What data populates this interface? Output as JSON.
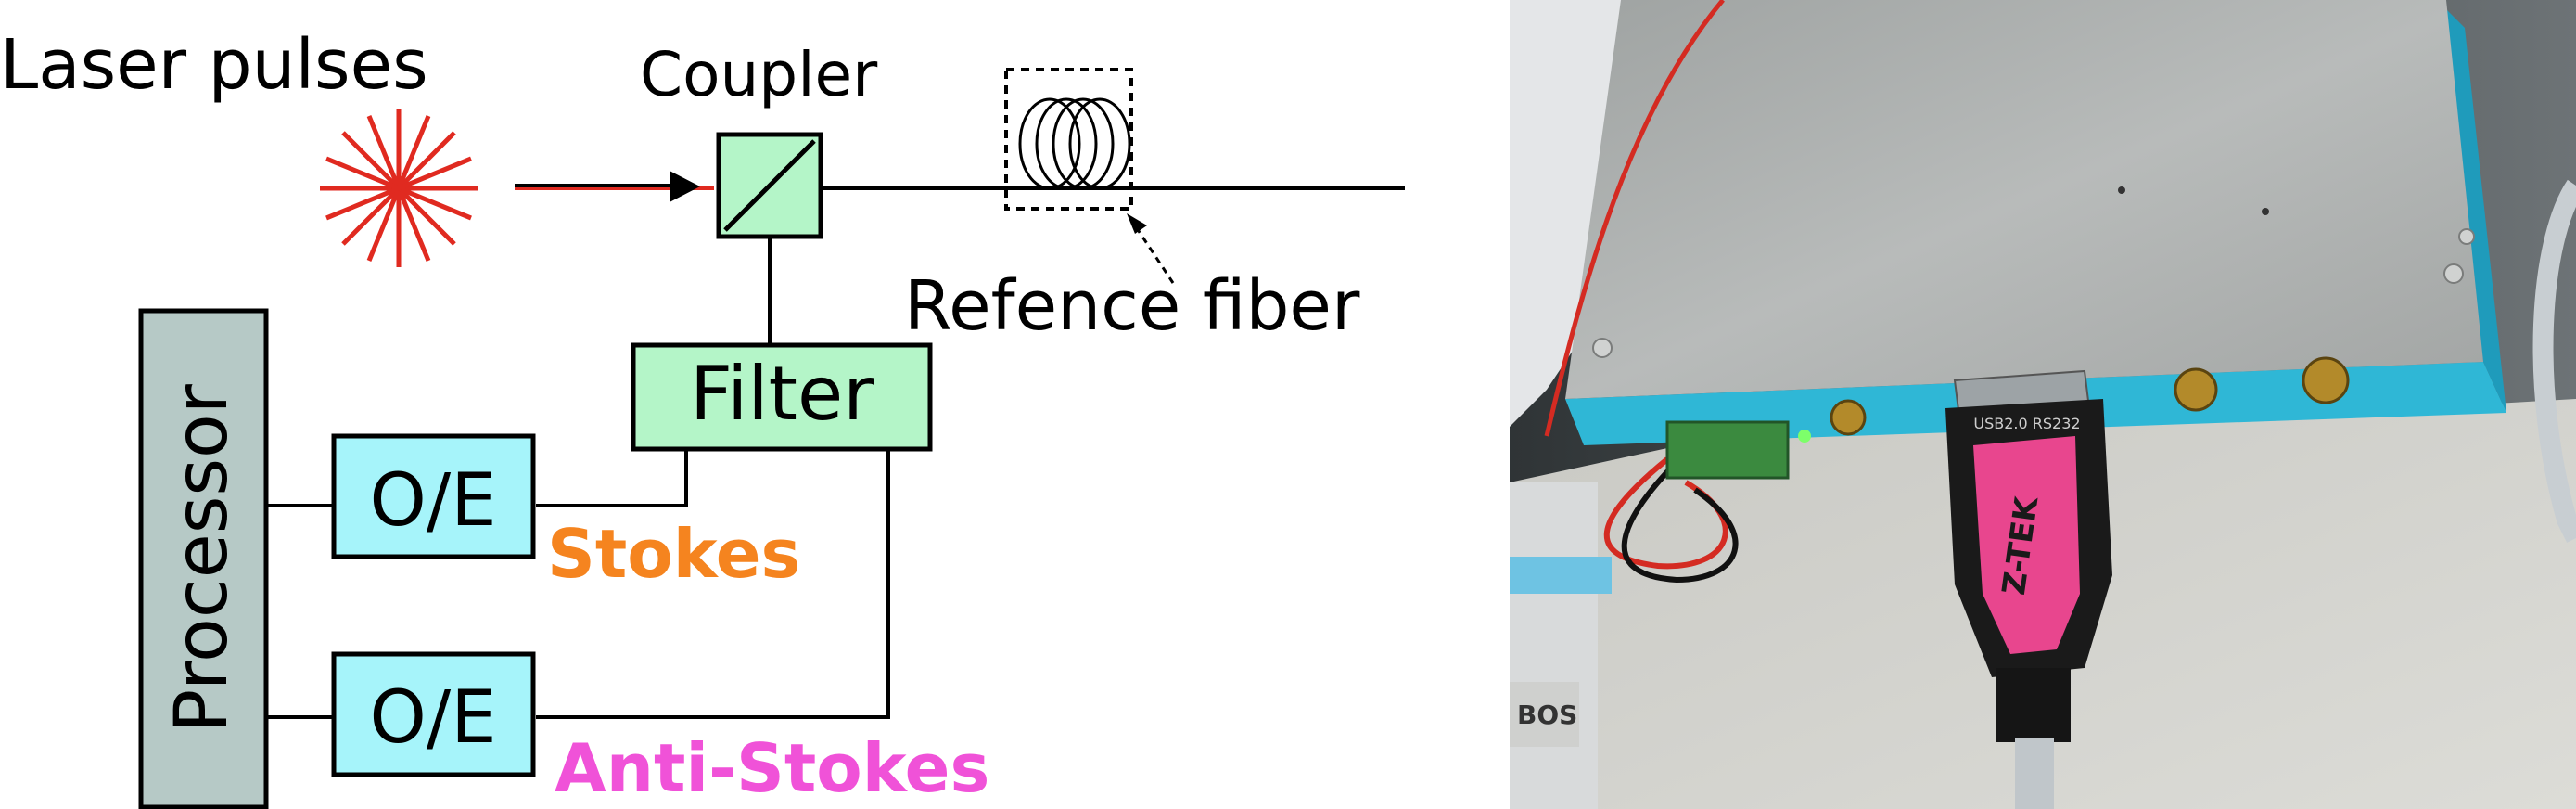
{
  "labels": {
    "laser": "Laser pulses",
    "coupler": "Coupler",
    "reference": "Refence fiber",
    "filter": "Filter",
    "processor": "Processor",
    "oe_top": "O/E",
    "oe_bottom": "O/E",
    "stokes": "Stokes",
    "anti_stokes": "Anti-Stokes"
  },
  "photo_text": {
    "connector_brand": "Z-TEK",
    "adapter_label": "USB2.0 RS232",
    "sticker": "BOS"
  },
  "colors": {
    "laser": "#e02a20",
    "box_green": "#b4f5c8",
    "box_cyan": "#a6f4fa",
    "processor_gray": "#b6c9c6",
    "stokes": "#f5841f",
    "anti_stokes": "#f052d8",
    "line": "#000000",
    "device_blue": "#2fb7d6",
    "plate_gray": "#a9acab",
    "connector_pink": "#e8468e"
  }
}
